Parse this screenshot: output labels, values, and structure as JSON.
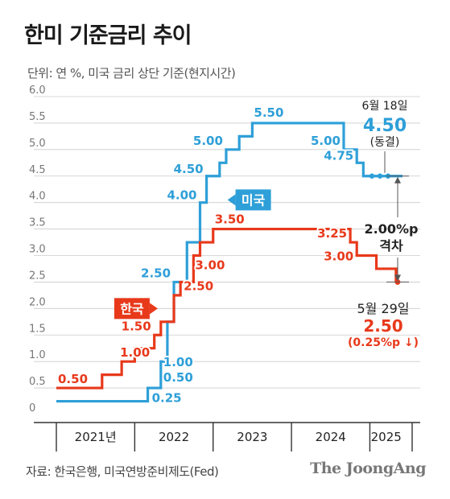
{
  "title": "한미 기준금리 추이",
  "subtitle": "단위: 연 %, 미국 금리 상단 기준(현지시간)",
  "source": "자료: 한국은행, 미국연방준비제도(Fed)",
  "brand": "The JoongAng",
  "colors": {
    "us": "#2e9fd8",
    "kr": "#e8391b",
    "axis": "#333333",
    "grid": "#cccccc"
  },
  "chart_data": {
    "type": "line",
    "step": true,
    "x_range": [
      "2021-01",
      "2025-06"
    ],
    "ylim": [
      0,
      6.0
    ],
    "yticks": [
      "0",
      "0.5",
      "1.0",
      "1.5",
      "2.0",
      "2.5",
      "3.0",
      "3.5",
      "4.0",
      "4.5",
      "5.0",
      "5.5",
      "6.0"
    ],
    "years": [
      "2021년",
      "2022",
      "2023",
      "2024",
      "2025"
    ],
    "grid": true,
    "series": [
      {
        "name": "미국",
        "color": "#2e9fd8",
        "points": [
          {
            "x": "2021-01",
            "y": 0.25
          },
          {
            "x": "2022-03",
            "y": 0.5
          },
          {
            "x": "2022-05",
            "y": 1.0
          },
          {
            "x": "2022-06",
            "y": 1.75
          },
          {
            "x": "2022-07",
            "y": 2.5
          },
          {
            "x": "2022-09",
            "y": 3.25
          },
          {
            "x": "2022-11",
            "y": 4.0
          },
          {
            "x": "2022-12",
            "y": 4.5
          },
          {
            "x": "2023-02",
            "y": 4.75
          },
          {
            "x": "2023-03",
            "y": 5.0
          },
          {
            "x": "2023-05",
            "y": 5.25
          },
          {
            "x": "2023-07",
            "y": 5.5
          },
          {
            "x": "2024-09",
            "y": 5.0
          },
          {
            "x": "2024-11",
            "y": 4.75
          },
          {
            "x": "2024-12",
            "y": 4.5
          },
          {
            "x": "2025-06",
            "y": 4.5
          }
        ]
      },
      {
        "name": "한국",
        "color": "#e8391b",
        "points": [
          {
            "x": "2021-01",
            "y": 0.5
          },
          {
            "x": "2021-08",
            "y": 0.75
          },
          {
            "x": "2021-11",
            "y": 1.0
          },
          {
            "x": "2022-01",
            "y": 1.25
          },
          {
            "x": "2022-04",
            "y": 1.5
          },
          {
            "x": "2022-05",
            "y": 1.75
          },
          {
            "x": "2022-07",
            "y": 2.25
          },
          {
            "x": "2022-08",
            "y": 2.5
          },
          {
            "x": "2022-10",
            "y": 3.0
          },
          {
            "x": "2022-11",
            "y": 3.25
          },
          {
            "x": "2023-01",
            "y": 3.5
          },
          {
            "x": "2024-10",
            "y": 3.25
          },
          {
            "x": "2024-11",
            "y": 3.0
          },
          {
            "x": "2025-02",
            "y": 2.75
          },
          {
            "x": "2025-05",
            "y": 2.5
          }
        ]
      }
    ],
    "us_labels": [
      {
        "x": "2022-03",
        "y": 0.25,
        "text": "0.25",
        "dx": 5,
        "dy": 1,
        "anchor": "start"
      },
      {
        "x": "2022-05",
        "y": 0.5,
        "text": "0.50",
        "dx": 3,
        "dy": -8,
        "anchor": "start"
      },
      {
        "x": "2022-05",
        "y": 1.0,
        "text": "1.00",
        "dx": 3,
        "dy": 6,
        "anchor": "start"
      },
      {
        "x": "2022-07",
        "y": 2.5,
        "text": "2.50",
        "dx": -4,
        "dy": -6,
        "anchor": "end"
      },
      {
        "x": "2022-11",
        "y": 4.0,
        "text": "4.00",
        "dx": -4,
        "dy": -4,
        "anchor": "end"
      },
      {
        "x": "2022-12",
        "y": 4.5,
        "text": "4.50",
        "dx": -4,
        "dy": -4,
        "anchor": "end"
      },
      {
        "x": "2023-03",
        "y": 5.0,
        "text": "5.00",
        "dx": -4,
        "dy": -6,
        "anchor": "end"
      },
      {
        "x": "2023-07",
        "y": 5.5,
        "text": "5.50",
        "dx": 2,
        "dy": -8,
        "anchor": "start"
      },
      {
        "x": "2024-09",
        "y": 5.0,
        "text": "5.00",
        "dx": -4,
        "dy": -6,
        "anchor": "end"
      },
      {
        "x": "2024-11",
        "y": 4.75,
        "text": "4.75",
        "dx": -4,
        "dy": -4,
        "anchor": "end"
      }
    ],
    "kr_labels": [
      {
        "x": "2021-01",
        "y": 0.5,
        "text": "0.50",
        "dx": 2,
        "dy": -6,
        "anchor": "start"
      },
      {
        "x": "2021-11",
        "y": 1.0,
        "text": "1.00",
        "dx": -2,
        "dy": -6,
        "anchor": "start"
      },
      {
        "x": "2022-04",
        "y": 1.5,
        "text": "1.50",
        "dx": -4,
        "dy": -6,
        "anchor": "end"
      },
      {
        "x": "2022-08",
        "y": 2.5,
        "text": "2.50",
        "dx": 4,
        "dy": 10,
        "anchor": "start"
      },
      {
        "x": "2022-10",
        "y": 3.0,
        "text": "3.00",
        "dx": 2,
        "dy": 17,
        "anchor": "start"
      },
      {
        "x": "2023-01",
        "y": 3.5,
        "text": "3.50",
        "dx": 2,
        "dy": -7,
        "anchor": "start"
      },
      {
        "x": "2024-10",
        "y": 3.25,
        "text": "3.25",
        "dx": -4,
        "dy": -6,
        "anchor": "end"
      },
      {
        "x": "2024-11",
        "y": 3.0,
        "text": "3.00",
        "dx": -4,
        "dy": 6,
        "anchor": "end"
      }
    ],
    "tags": {
      "us": {
        "text": "미국",
        "x": "2022-12",
        "y": 4.05,
        "dx": 36
      },
      "kr": {
        "text": "한국",
        "x": "2022-06",
        "y": 2.0,
        "dx": -12
      }
    },
    "us_end": {
      "date": "6월 18일",
      "value": "4.50",
      "status": "(동결)"
    },
    "kr_end": {
      "date": "5월 29일",
      "value": "2.50",
      "change": "(0.25%p ↓)"
    },
    "gap": {
      "value": "2.00%p",
      "label": "격차"
    }
  }
}
